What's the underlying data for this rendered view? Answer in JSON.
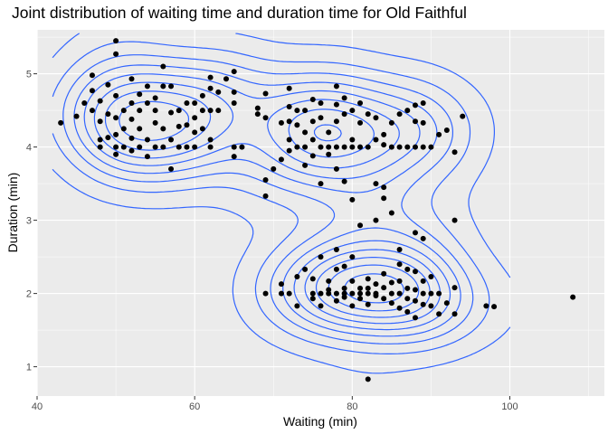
{
  "chart_data": {
    "type": "scatter",
    "title": "Joint distribution of waiting time and duration time for Old Faithful",
    "xlabel": "Waiting (min)",
    "ylabel": "Duration (min)",
    "xlim": [
      40,
      112
    ],
    "ylim": [
      0.6,
      5.6
    ],
    "x_ticks": [
      40,
      60,
      80,
      100
    ],
    "y_ticks": [
      1,
      2,
      3,
      4,
      5
    ],
    "grid": true,
    "legend": "none",
    "colors": {
      "panel": "#EBEBEB",
      "grid_major": "#FFFFFF",
      "point": "#000000",
      "contour": "#3366FF"
    },
    "overlay": "2D density contours",
    "points": [
      [
        43,
        4.33
      ],
      [
        45,
        4.42
      ],
      [
        46,
        4.6
      ],
      [
        47,
        4.98
      ],
      [
        47,
        4.77
      ],
      [
        47,
        4.5
      ],
      [
        48,
        4.35
      ],
      [
        48,
        4.1
      ],
      [
        48,
        4.63
      ],
      [
        48,
        4.0
      ],
      [
        49,
        4.85
      ],
      [
        49,
        4.45
      ],
      [
        49,
        4.13
      ],
      [
        50,
        5.45
      ],
      [
        50,
        5.27
      ],
      [
        50,
        4.4
      ],
      [
        50,
        4.7
      ],
      [
        50,
        4.17
      ],
      [
        50,
        4.0
      ],
      [
        50,
        3.9
      ],
      [
        51,
        4.5
      ],
      [
        51,
        4.0
      ],
      [
        51,
        4.25
      ],
      [
        52,
        4.93
      ],
      [
        52,
        4.6
      ],
      [
        52,
        4.38
      ],
      [
        52,
        4.12
      ],
      [
        52,
        3.95
      ],
      [
        53,
        4.72
      ],
      [
        53,
        4.5
      ],
      [
        53,
        4.25
      ],
      [
        53,
        4.0
      ],
      [
        54,
        4.6
      ],
      [
        54,
        4.83
      ],
      [
        54,
        4.1
      ],
      [
        54,
        3.87
      ],
      [
        55,
        4.33
      ],
      [
        55,
        4.5
      ],
      [
        55,
        4.67
      ],
      [
        55,
        4.0
      ],
      [
        56,
        5.1
      ],
      [
        56,
        4.83
      ],
      [
        56,
        4.25
      ],
      [
        56,
        4.0
      ],
      [
        57,
        4.83
      ],
      [
        57,
        4.47
      ],
      [
        57,
        4.1
      ],
      [
        57,
        3.7
      ],
      [
        58,
        4.5
      ],
      [
        58,
        4.0
      ],
      [
        58,
        4.28
      ],
      [
        59,
        4.6
      ],
      [
        59,
        4.3
      ],
      [
        59,
        4.0
      ],
      [
        60,
        4.4
      ],
      [
        60,
        4.6
      ],
      [
        60,
        4.2
      ],
      [
        60,
        4.0
      ],
      [
        61,
        4.7
      ],
      [
        61,
        4.5
      ],
      [
        61,
        4.25
      ],
      [
        62,
        4.5
      ],
      [
        62,
        4.8
      ],
      [
        62,
        4.95
      ],
      [
        62,
        4.1
      ],
      [
        62,
        4.0
      ],
      [
        63,
        4.75
      ],
      [
        63,
        4.5
      ],
      [
        64,
        4.93
      ],
      [
        65,
        5.03
      ],
      [
        65,
        4.75
      ],
      [
        65,
        4.6
      ],
      [
        65,
        4.0
      ],
      [
        65,
        3.87
      ],
      [
        66,
        4.0
      ],
      [
        68,
        4.53
      ],
      [
        68,
        4.45
      ],
      [
        69,
        4.73
      ],
      [
        69,
        4.4
      ],
      [
        69,
        3.55
      ],
      [
        69,
        3.33
      ],
      [
        69,
        2.0
      ],
      [
        70,
        3.7
      ],
      [
        71,
        4.33
      ],
      [
        71,
        3.83
      ],
      [
        71,
        2.13
      ],
      [
        71,
        2.0
      ],
      [
        72,
        4.8
      ],
      [
        72,
        4.55
      ],
      [
        72,
        4.35
      ],
      [
        72,
        4.1
      ],
      [
        72,
        3.95
      ],
      [
        72,
        2.0
      ],
      [
        73,
        4.3
      ],
      [
        73,
        4.5
      ],
      [
        73,
        4.0
      ],
      [
        73,
        1.83
      ],
      [
        73,
        2.23
      ],
      [
        74,
        4.5
      ],
      [
        74,
        4.2
      ],
      [
        74,
        4.0
      ],
      [
        74,
        3.75
      ],
      [
        74,
        2.33
      ],
      [
        75,
        4.65
      ],
      [
        75,
        4.35
      ],
      [
        75,
        4.1
      ],
      [
        75,
        3.88
      ],
      [
        75,
        2.0
      ],
      [
        75,
        1.93
      ],
      [
        75,
        2.2
      ],
      [
        76,
        4.6
      ],
      [
        76,
        4.4
      ],
      [
        76,
        4.0
      ],
      [
        76,
        3.5
      ],
      [
        76,
        2.5
      ],
      [
        76,
        2.0
      ],
      [
        76,
        1.83
      ],
      [
        77,
        4.2
      ],
      [
        77,
        4.0
      ],
      [
        77,
        3.9
      ],
      [
        77,
        2.17
      ],
      [
        77,
        2.0
      ],
      [
        77,
        2.05
      ],
      [
        78,
        4.83
      ],
      [
        78,
        4.58
      ],
      [
        78,
        4.35
      ],
      [
        78,
        4.0
      ],
      [
        78,
        3.7
      ],
      [
        78,
        2.6
      ],
      [
        78,
        2.33
      ],
      [
        78,
        2.0
      ],
      [
        78,
        1.9
      ],
      [
        79,
        4.67
      ],
      [
        79,
        4.45
      ],
      [
        79,
        4.0
      ],
      [
        79,
        3.53
      ],
      [
        79,
        2.07
      ],
      [
        79,
        2.0
      ],
      [
        79,
        1.95
      ],
      [
        79,
        2.37
      ],
      [
        80,
        4.5
      ],
      [
        80,
        4.1
      ],
      [
        80,
        4.0
      ],
      [
        80,
        3.28
      ],
      [
        80,
        2.17
      ],
      [
        80,
        2.0
      ],
      [
        80,
        1.83
      ],
      [
        80,
        2.5
      ],
      [
        81,
        4.6
      ],
      [
        81,
        4.33
      ],
      [
        81,
        4.0
      ],
      [
        81,
        2.93
      ],
      [
        81,
        2.0
      ],
      [
        81,
        2.07
      ],
      [
        81,
        1.93
      ],
      [
        82,
        4.45
      ],
      [
        82,
        4.0
      ],
      [
        82,
        2.0
      ],
      [
        82,
        1.85
      ],
      [
        82,
        2.07
      ],
      [
        82,
        2.2
      ],
      [
        82,
        0.83
      ],
      [
        83,
        4.4
      ],
      [
        83,
        4.1
      ],
      [
        83,
        3.5
      ],
      [
        83,
        3.0
      ],
      [
        83,
        2.0
      ],
      [
        83,
        2.13
      ],
      [
        83,
        1.97
      ],
      [
        84,
        4.17
      ],
      [
        84,
        4.03
      ],
      [
        84,
        3.45
      ],
      [
        84,
        3.3
      ],
      [
        84,
        2.08
      ],
      [
        84,
        1.93
      ],
      [
        84,
        2.27
      ],
      [
        85,
        4.33
      ],
      [
        85,
        4.0
      ],
      [
        85,
        3.1
      ],
      [
        85,
        2.0
      ],
      [
        85,
        1.87
      ],
      [
        85,
        2.15
      ],
      [
        86,
        4.45
      ],
      [
        86,
        4.0
      ],
      [
        86,
        2.4
      ],
      [
        86,
        2.17
      ],
      [
        86,
        2.0
      ],
      [
        86,
        1.8
      ],
      [
        86,
        2.6
      ],
      [
        87,
        4.5
      ],
      [
        87,
        4.0
      ],
      [
        87,
        2.33
      ],
      [
        87,
        2.07
      ],
      [
        87,
        1.93
      ],
      [
        87,
        1.75
      ],
      [
        88,
        4.57
      ],
      [
        88,
        4.35
      ],
      [
        88,
        4.0
      ],
      [
        88,
        2.83
      ],
      [
        88,
        2.3
      ],
      [
        88,
        2.05
      ],
      [
        88,
        1.9
      ],
      [
        88,
        1.67
      ],
      [
        89,
        4.6
      ],
      [
        89,
        4.33
      ],
      [
        89,
        4.0
      ],
      [
        89,
        2.75
      ],
      [
        89,
        2.17
      ],
      [
        89,
        2.0
      ],
      [
        89,
        1.85
      ],
      [
        90,
        4.0
      ],
      [
        90,
        2.0
      ],
      [
        90,
        2.23
      ],
      [
        90,
        1.83
      ],
      [
        91,
        4.17
      ],
      [
        91,
        2.0
      ],
      [
        91,
        1.72
      ],
      [
        92,
        4.23
      ],
      [
        92,
        1.87
      ],
      [
        93,
        3.93
      ],
      [
        93,
        3.0
      ],
      [
        93,
        1.72
      ],
      [
        93,
        2.08
      ],
      [
        94,
        4.42
      ],
      [
        97,
        1.83
      ],
      [
        98,
        1.82
      ],
      [
        108,
        1.95
      ]
    ]
  }
}
